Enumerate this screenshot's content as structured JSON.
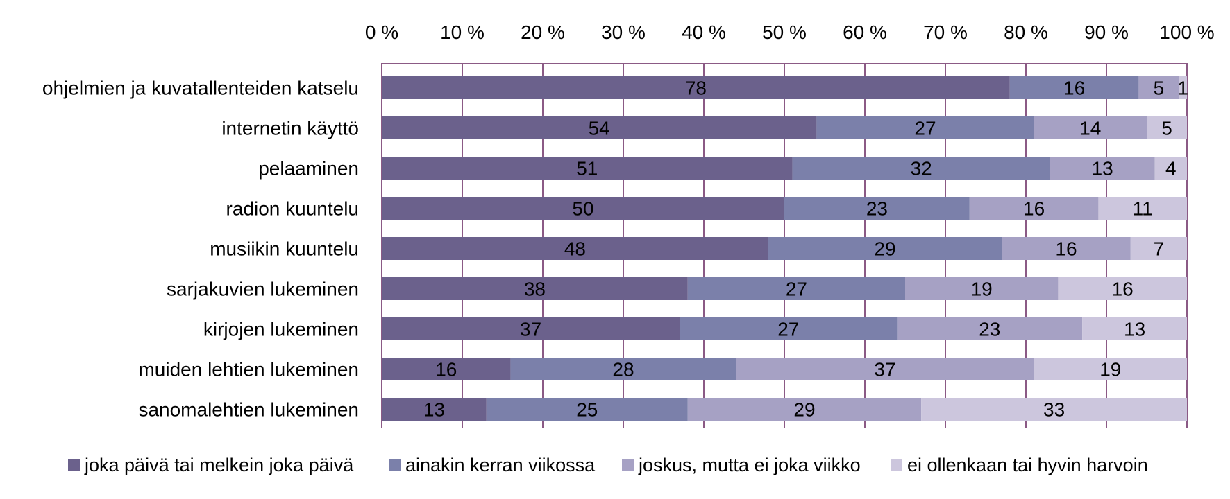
{
  "chart_data": {
    "type": "bar",
    "orientation": "horizontal",
    "stacked": true,
    "title": "",
    "xlabel": "",
    "ylabel": "",
    "xlim": [
      0,
      100
    ],
    "x_ticks": [
      "0 %",
      "10 %",
      "20 %",
      "30 %",
      "40 %",
      "50 %",
      "60 %",
      "70 %",
      "80 %",
      "90 %",
      "100 %"
    ],
    "x_axis_position": "top",
    "grid": true,
    "legend_position": "bottom",
    "categories": [
      "ohjelmien ja kuvatallenteiden katselu",
      "internetin käyttö",
      "pelaaminen",
      "radion kuuntelu",
      "musiikin kuuntelu",
      "sarjakuvien lukeminen",
      "kirjojen lukeminen",
      "muiden lehtien lukeminen",
      "sanomalehtien lukeminen"
    ],
    "series": [
      {
        "name": "joka päivä tai melkein joka päivä",
        "color": "#6b618c",
        "values": [
          78,
          54,
          51,
          50,
          48,
          38,
          37,
          16,
          13
        ]
      },
      {
        "name": "ainakin kerran viikossa",
        "color": "#7b80aa",
        "values": [
          16,
          27,
          32,
          23,
          29,
          27,
          27,
          28,
          25
        ]
      },
      {
        "name": "joskus, mutta ei joka viikko",
        "color": "#a6a1c4",
        "values": [
          5,
          14,
          13,
          16,
          16,
          19,
          23,
          37,
          29
        ]
      },
      {
        "name": "ei ollenkaan tai hyvin harvoin",
        "color": "#ccc6dd",
        "values": [
          1,
          5,
          4,
          11,
          7,
          16,
          13,
          19,
          33
        ]
      }
    ],
    "axis_color": "#8b5a85"
  }
}
